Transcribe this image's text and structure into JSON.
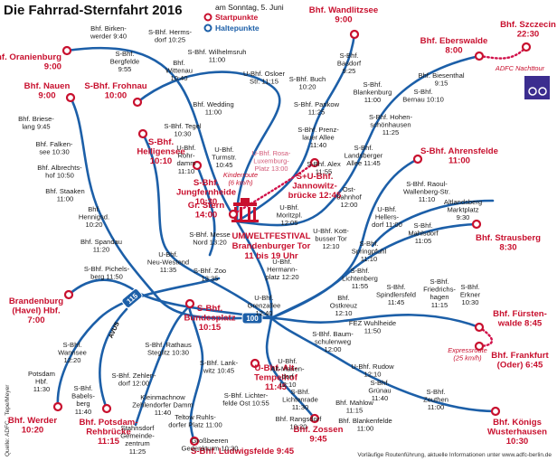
{
  "header": {
    "title": "Die Fahrrad-Sternfahrt 2016",
    "date": "am Sonntag, 5. Juni"
  },
  "legend": {
    "start": "Startpunkte",
    "stop": "Haltepunkte"
  },
  "start_points": [
    {
      "lines": [
        "Bhf. Oranienburg",
        "9:00"
      ]
    },
    {
      "lines": [
        "Bhf. Nauen",
        "9:00"
      ]
    },
    {
      "lines": [
        "S-Bhf. Frohnau",
        "10:00"
      ]
    },
    {
      "lines": [
        "S-Bhf.",
        "Heiligensee",
        "10:10"
      ]
    },
    {
      "lines": [
        "S-Bhf.",
        "Jungfernheide",
        "10:30"
      ]
    },
    {
      "lines": [
        "Gr. Stern",
        "14:00"
      ]
    },
    {
      "lines": [
        "S+U-Bhf.",
        "Jannowitz-",
        "brücke 12:45"
      ]
    },
    {
      "lines": [
        "Bhf. Wandlitzsee",
        "9:00"
      ]
    },
    {
      "lines": [
        "Bhf. Eberswalde",
        "8:00"
      ]
    },
    {
      "lines": [
        "Bhf. Szczecin",
        "22:30"
      ]
    },
    {
      "lines": [
        "S-Bhf. Ahrensfelde",
        "11:00"
      ]
    },
    {
      "lines": [
        "Bhf. Strausberg",
        "8:30"
      ]
    },
    {
      "lines": [
        "Bhf. Fürsten-",
        "walde 8:45"
      ]
    },
    {
      "lines": [
        "Bhf. Frankfurt",
        "(Oder) 6:45"
      ]
    },
    {
      "lines": [
        "Bhf. Zossen",
        "9:45"
      ]
    },
    {
      "lines": [
        "U-Bhf. Alt-",
        "Tempelhof",
        "11:45"
      ]
    },
    {
      "lines": [
        "S-Bhf.",
        "Bundesplatz",
        "10:15"
      ]
    },
    {
      "lines": [
        "Brandenburg",
        "(Havel) Hbf.",
        "7:00"
      ]
    },
    {
      "lines": [
        "Bhf. Werder",
        "10:20"
      ]
    },
    {
      "lines": [
        "Bhf. Potsdam-",
        "Rehbrücke",
        "11:15"
      ]
    },
    {
      "lines": [
        "S-Bhf. Ludwigsfelde 9:45"
      ]
    },
    {
      "lines": [
        "Bhf. Königs",
        "Wusterhausen",
        "10:30"
      ]
    }
  ],
  "festival": {
    "lines": [
      "UMWELTFESTIVAL",
      "Brandenburger Tor",
      "11 bis 19 Uhr"
    ]
  },
  "stops": [
    {
      "lines": [
        "Bhf. Birken-",
        "werder 9:40"
      ]
    },
    {
      "lines": [
        "S-Bhf. Herms-",
        "dorf 10:25"
      ]
    },
    {
      "lines": [
        "S-Bhf.",
        "Bergfelde",
        "9:55"
      ]
    },
    {
      "lines": [
        "Bhf.",
        "Wittenau",
        "10:40"
      ]
    },
    {
      "lines": [
        "S-Bhf. Wilhelmsruh",
        "11:00"
      ]
    },
    {
      "lines": [
        "U-Bhf. Osloer",
        "Str. 11:15"
      ]
    },
    {
      "lines": [
        "S-Bhf.",
        "Basdorf",
        "9:25"
      ]
    },
    {
      "lines": [
        "S-Bhf. Buch",
        "10:20"
      ]
    },
    {
      "lines": [
        "S-Bhf.",
        "Blankenburg",
        "11:00"
      ]
    },
    {
      "lines": [
        "Bhf. Biesenthal",
        "9:15"
      ]
    },
    {
      "lines": [
        "S-Bhf.",
        "Bernau 10:10"
      ]
    },
    {
      "lines": [
        "S-Bhf. Pankow",
        "11:25"
      ]
    },
    {
      "lines": [
        "S-Bhf. Prenz-",
        "lauer Allee",
        "11:40"
      ]
    },
    {
      "lines": [
        "S-Bhf. Alex",
        "11:55"
      ]
    },
    {
      "lines": [
        "Bhf. Wedding",
        "11:00"
      ]
    },
    {
      "lines": [
        "S-Bhf. Tegel",
        "10:30"
      ]
    },
    {
      "lines": [
        "Bhf. Briese-",
        "lang 9:45"
      ]
    },
    {
      "lines": [
        "Bhf. Falken-",
        "see 10:30"
      ]
    },
    {
      "lines": [
        "Bhf. Albrechts-",
        "hof 10:50"
      ]
    },
    {
      "lines": [
        "Bhf. Staaken",
        "11:00"
      ]
    },
    {
      "lines": [
        "Bhf.",
        "Hennigsd.",
        "10:20"
      ]
    },
    {
      "lines": [
        "Bhf. Spandau",
        "11:20"
      ]
    },
    {
      "lines": [
        "U-Bhf.",
        "Neu-Westend",
        "11:35"
      ]
    },
    {
      "lines": [
        "S-Bhf. Messe",
        "Nord 13:20"
      ]
    },
    {
      "lines": [
        "S-Bhf. Pichels-",
        "berg 11:50"
      ]
    },
    {
      "lines": [
        "U-Bhf.",
        "Rohr-",
        "damm",
        "11:10"
      ]
    },
    {
      "lines": [
        "U-Bhf.",
        "Turmstr.",
        "10:45"
      ]
    },
    {
      "lines": [
        "U-Bhf.",
        "Moritzpl.",
        "12:05"
      ]
    },
    {
      "lines": [
        "Ost-",
        "bahnhof",
        "12:00"
      ]
    },
    {
      "lines": [
        "U-Bhf. Kott-",
        "busser Tor",
        "12:10"
      ]
    },
    {
      "lines": [
        "U-Bhf.",
        "Hermann-",
        "platz 12:20"
      ]
    },
    {
      "lines": [
        "S-Bhf. Zoo",
        "13:35"
      ]
    },
    {
      "lines": [
        "U-Bhf.",
        "Grenzallee",
        "12:40"
      ]
    },
    {
      "lines": [
        "S-Bhf. Hohen-",
        "schönhausen",
        "11:25"
      ]
    },
    {
      "lines": [
        "S-Bhf.",
        "Landsberger",
        "Allee 11:45"
      ]
    },
    {
      "lines": [
        "S-Bhf. Raoul-",
        "Wallenberg-Str.",
        "11:10"
      ]
    },
    {
      "lines": [
        "Altlandsberg",
        "Marktplatz",
        "9:30"
      ]
    },
    {
      "lines": [
        "U-Bhf.",
        "Hellers-",
        "dorf 11:00"
      ]
    },
    {
      "lines": [
        "S-Bhf.",
        "Mahlsdorf",
        "11:05"
      ]
    },
    {
      "lines": [
        "S-Bhf.",
        "Springpfuhl",
        "11:10"
      ]
    },
    {
      "lines": [
        "S-Bhf.",
        "Lichtenberg",
        "11:55"
      ]
    },
    {
      "lines": [
        "S-Bhf.",
        "Spindlersfeld",
        "11:45"
      ]
    },
    {
      "lines": [
        "S-Bhf.",
        "Friedrichs-",
        "hagen",
        "11:15"
      ]
    },
    {
      "lines": [
        "S-Bhf.",
        "Erkner",
        "10:30"
      ]
    },
    {
      "lines": [
        "Bhf.",
        "Ostkreuz",
        "12:10"
      ]
    },
    {
      "lines": [
        "FEZ Wuhlheide",
        "11:50"
      ]
    },
    {
      "lines": [
        "S-Bhf. Baum-",
        "schulenweg",
        "12:00"
      ]
    },
    {
      "lines": [
        "U-Bhf.",
        "Alt-Marien-",
        "dorf",
        "12:10"
      ]
    },
    {
      "lines": [
        "U-Bhf. Rudow",
        "12:10"
      ]
    },
    {
      "lines": [
        "S-Bhf.",
        "Grünau",
        "11:40"
      ]
    },
    {
      "lines": [
        "S-Bhf.",
        "Lichtenrade",
        "11:30"
      ]
    },
    {
      "lines": [
        "S-Bhf.",
        "Zeuthen",
        "11:00"
      ]
    },
    {
      "lines": [
        "Bhf. Mahlow",
        "11:15"
      ]
    },
    {
      "lines": [
        "Bhf. Rangsdorf",
        "10:20"
      ]
    },
    {
      "lines": [
        "Bhf. Blankenfelde",
        "11:00"
      ]
    },
    {
      "lines": [
        "S-Bhf. Rathaus",
        "Steglitz 10:30"
      ]
    },
    {
      "lines": [
        "S-Bhf. Lank-",
        "witz 10:45"
      ]
    },
    {
      "lines": [
        "S-Bhf. Zehlen-",
        "dorf 12:00"
      ]
    },
    {
      "lines": [
        "Kleinmachnow",
        "Zehlendorfer Damm",
        "11:40"
      ]
    },
    {
      "lines": [
        "S-Bhf. Lichter-",
        "felde Ost 10:55"
      ]
    },
    {
      "lines": [
        "Teltow Ruhls-",
        "dorfer Platz 11:00"
      ]
    },
    {
      "lines": [
        "Stahnsdorf",
        "Gemeinde-",
        "zentrum",
        "11:25"
      ]
    },
    {
      "lines": [
        "Großbeeren",
        "Gedenkturm 10:30"
      ]
    },
    {
      "lines": [
        "S-Bhf.",
        "Wannsee",
        "12:20"
      ]
    },
    {
      "lines": [
        "Potsdam",
        "Hbf.",
        "11:30"
      ]
    },
    {
      "lines": [
        "S-Bhf.",
        "Babels-",
        "berg",
        "11:40"
      ]
    }
  ],
  "notes": [
    {
      "lines": [
        "U-Bhf. Rosa-",
        "Luxemburg-",
        "Platz 13:00"
      ]
    },
    {
      "lines": [
        "Kinderroute",
        "(6 km/h)"
      ]
    },
    {
      "lines": [
        "ADFC Nachttour"
      ]
    },
    {
      "lines": [
        "Expressroute",
        "(25 km/h)"
      ]
    }
  ],
  "shields": [
    "AVUS",
    "115",
    "100"
  ],
  "footer": {
    "source": "Quelle: ADFC · Tepe/Meyer",
    "info": "Vorläufige Routenführung, aktuelle Informationen unter www.adfc-berlin.de"
  }
}
